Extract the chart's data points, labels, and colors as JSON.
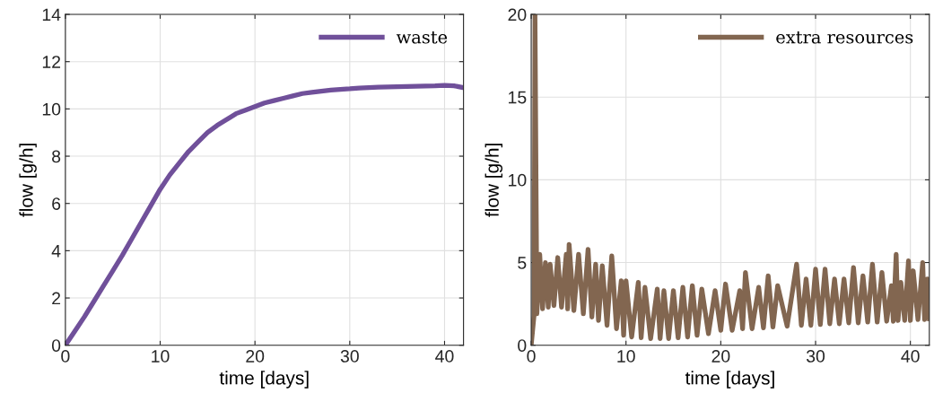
{
  "chart_data": [
    {
      "type": "line",
      "xlabel": "time [days]",
      "ylabel": "flow [g/h]",
      "xlim": [
        0,
        42
      ],
      "ylim": [
        0,
        14
      ],
      "xticks": [
        0,
        10,
        20,
        30,
        40
      ],
      "yticks": [
        0,
        2,
        4,
        6,
        8,
        10,
        12,
        14
      ],
      "grid": true,
      "legend": "top right",
      "line_style": "solid",
      "series": [
        {
          "name": "waste",
          "color": "#70509a",
          "x": [
            0,
            1,
            2,
            3,
            4,
            5,
            6,
            7,
            8,
            9,
            10,
            11,
            12,
            13,
            14,
            15,
            16,
            17,
            18,
            19,
            20,
            21,
            22,
            23,
            24,
            25,
            26,
            27,
            28,
            29,
            30,
            31,
            32,
            33,
            34,
            35,
            36,
            37,
            38,
            39,
            40,
            41,
            42
          ],
          "values": [
            0,
            0.6,
            1.2,
            1.85,
            2.5,
            3.15,
            3.8,
            4.5,
            5.2,
            5.9,
            6.6,
            7.2,
            7.7,
            8.2,
            8.6,
            9.0,
            9.3,
            9.55,
            9.8,
            9.95,
            10.1,
            10.25,
            10.35,
            10.45,
            10.55,
            10.65,
            10.7,
            10.75,
            10.8,
            10.83,
            10.85,
            10.88,
            10.9,
            10.92,
            10.93,
            10.94,
            10.95,
            10.96,
            10.97,
            10.98,
            11.0,
            10.98,
            10.9
          ]
        }
      ]
    },
    {
      "type": "line",
      "xlabel": "time [days]",
      "ylabel": "flow [g/h]",
      "xlim": [
        0,
        42
      ],
      "ylim": [
        0,
        20
      ],
      "xticks": [
        0,
        10,
        20,
        30,
        40
      ],
      "yticks": [
        0,
        5,
        10,
        15,
        20
      ],
      "grid": true,
      "legend": "top right",
      "line_style": "solid",
      "series": [
        {
          "name": "extra resources",
          "color": "#826650",
          "x": [
            0,
            0.3,
            0.4,
            0.6,
            0.9,
            1.2,
            1.5,
            1.8,
            2.0,
            2.4,
            2.8,
            3.2,
            3.7,
            3.85,
            4.0,
            4.5,
            5.0,
            5.5,
            6.0,
            6.4,
            6.8,
            7.1,
            7.5,
            8.0,
            8.5,
            9.0,
            9.5,
            9.75,
            10.0,
            10.6,
            11.3,
            11.6,
            12.0,
            12.6,
            13.3,
            13.6,
            14.0,
            14.5,
            15.0,
            15.5,
            16.0,
            16.5,
            17.0,
            17.5,
            18.0,
            18.7,
            19.4,
            20.0,
            20.5,
            21.2,
            22.0,
            22.3,
            22.6,
            23.3,
            24.0,
            24.5,
            25.0,
            25.5,
            26.0,
            27.0,
            28.0,
            28.5,
            29.0,
            29.5,
            30.0,
            30.5,
            31.0,
            31.5,
            32.0,
            32.5,
            33.0,
            33.5,
            34.0,
            34.5,
            35.0,
            35.5,
            36.0,
            36.5,
            37.0,
            37.5,
            38.0,
            38.2,
            38.5,
            38.7,
            39.0,
            39.4,
            39.8,
            40.0,
            40.3,
            40.8,
            41.3,
            41.5,
            41.8,
            42.0
          ],
          "values": [
            0,
            1.8,
            20,
            1.9,
            5.5,
            2.2,
            5.0,
            2.3,
            4.9,
            2.4,
            5.3,
            2.3,
            5.5,
            2.2,
            6.1,
            2.1,
            5.5,
            1.9,
            5.8,
            1.7,
            4.9,
            1.5,
            4.8,
            1.2,
            5.4,
            1.0,
            3.9,
            0.6,
            3.9,
            0.5,
            3.8,
            0.45,
            3.5,
            0.4,
            3.4,
            0.4,
            3.3,
            0.4,
            3.3,
            0.45,
            3.5,
            0.5,
            3.6,
            0.6,
            3.4,
            0.7,
            3.3,
            0.9,
            3.7,
            0.9,
            3.3,
            1.0,
            4.4,
            1.0,
            3.5,
            1.05,
            4.2,
            1.1,
            3.6,
            1.15,
            4.9,
            1.2,
            4.0,
            1.2,
            4.6,
            1.25,
            4.6,
            1.3,
            4.0,
            1.3,
            4.0,
            1.35,
            4.7,
            1.35,
            4.2,
            1.4,
            4.9,
            1.4,
            4.4,
            1.45,
            3.6,
            1.45,
            5.5,
            1.5,
            3.8,
            1.5,
            5.1,
            1.5,
            4.5,
            1.55,
            5.0,
            1.55,
            4.0,
            1.6
          ]
        }
      ]
    }
  ]
}
